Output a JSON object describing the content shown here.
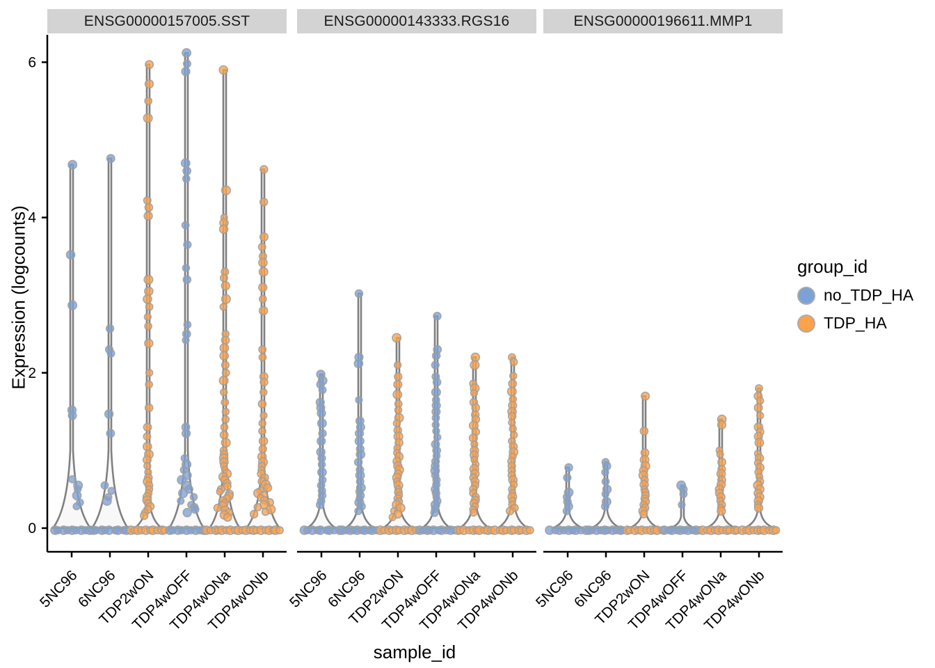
{
  "axes": {
    "y_title": "Expression (logcounts)",
    "x_title": "sample_id",
    "y_ticks": [
      0,
      2,
      4,
      6
    ],
    "x_categories": [
      "5NC96",
      "6NC96",
      "TDP2wON",
      "TDP4wOFF",
      "TDP4wONa",
      "TDP4wONb"
    ]
  },
  "legend": {
    "title": "group_id",
    "entries": [
      {
        "label": "no_TDP_HA",
        "group": "no_TDP_HA"
      },
      {
        "label": "TDP_HA",
        "group": "TDP_HA"
      }
    ]
  },
  "colors": {
    "group_colors": {
      "no_TDP_HA": "#7BA2D6",
      "TDP_HA": "#FBA24B"
    },
    "point_stroke": "#9e9e9e",
    "violin_fill": "#F8F8F8",
    "violin_stroke": "#808080",
    "strip_bg": "#D3D3D3",
    "axis": "#000000"
  },
  "chart_data": {
    "type": "violin",
    "ylabel": "Expression (logcounts)",
    "xlabel": "sample_id",
    "ylim": [
      0,
      6.2
    ],
    "categories": [
      "5NC96",
      "6NC96",
      "TDP2wON",
      "TDP4wOFF",
      "TDP4wONa",
      "TDP4wONb"
    ],
    "sample_groups": {
      "5NC96": "no_TDP_HA",
      "6NC96": "no_TDP_HA",
      "TDP2wON": "TDP_HA",
      "TDP4wOFF": "no_TDP_HA",
      "TDP4wONa": "TDP_HA",
      "TDP4wONb": "TDP_HA"
    },
    "facets": [
      {
        "gene": "ENSG00000157005.SST",
        "violins": [
          {
            "sample": "5NC96",
            "group": "no_TDP_HA",
            "flare_top": 1.0,
            "base_half": 27,
            "zero_count": 9,
            "points": [
              4.68,
              3.52,
              2.87,
              1.52,
              1.45,
              0.63,
              0.55,
              0.5,
              0.42,
              0.33,
              0.28
            ]
          },
          {
            "sample": "6NC96",
            "group": "no_TDP_HA",
            "flare_top": 1.0,
            "base_half": 26,
            "zero_count": 9,
            "points": [
              4.76,
              2.57,
              2.3,
              2.25,
              1.47,
              1.22,
              0.55,
              0.48,
              0.4,
              0.35
            ]
          },
          {
            "sample": "TDP2wON",
            "group": "TDP_HA",
            "flare_top": 0.35,
            "base_half": 20,
            "zero_count": 10,
            "points": [
              5.97,
              5.72,
              5.5,
              5.28,
              4.22,
              4.13,
              4.02,
              3.2,
              3.05,
              2.95,
              2.85,
              2.72,
              2.6,
              2.38,
              2.0,
              1.85,
              1.55,
              1.3,
              1.18,
              1.05,
              0.95,
              0.88,
              0.8,
              0.72,
              0.65,
              0.6,
              0.55,
              0.5,
              0.45,
              0.4,
              0.36,
              0.32,
              0.28,
              0.24,
              0.2,
              0.16
            ]
          },
          {
            "sample": "TDP4wOFF",
            "group": "no_TDP_HA",
            "flare_top": 1.0,
            "base_half": 25,
            "zero_count": 9,
            "points": [
              6.12,
              5.98,
              5.88,
              4.7,
              4.6,
              4.5,
              3.9,
              3.65,
              3.35,
              3.2,
              2.62,
              2.5,
              2.42,
              1.3,
              1.22,
              0.9,
              0.82,
              0.75,
              0.68,
              0.62,
              0.55,
              0.5,
              0.45,
              0.4,
              0.35,
              0.3,
              0.27,
              0.24,
              0.2
            ]
          },
          {
            "sample": "TDP4wONa",
            "group": "TDP_HA",
            "flare_top": 0.8,
            "base_half": 22,
            "zero_count": 10,
            "points": [
              5.9,
              4.35,
              4.0,
              3.93,
              3.85,
              3.3,
              3.22,
              3.12,
              2.95,
              2.85,
              2.5,
              2.42,
              2.32,
              2.22,
              2.1,
              2.0,
              1.9,
              1.75,
              1.62,
              1.5,
              1.4,
              1.3,
              1.2,
              1.1,
              1.0,
              0.95,
              0.9,
              0.85,
              0.8,
              0.75,
              0.7,
              0.66,
              0.62,
              0.58,
              0.54,
              0.5,
              0.47,
              0.44,
              0.41,
              0.38,
              0.35,
              0.32,
              0.29,
              0.26,
              0.23,
              0.2,
              0.17,
              0.14
            ]
          },
          {
            "sample": "TDP4wONb",
            "group": "TDP_HA",
            "flare_top": 0.8,
            "base_half": 24,
            "zero_count": 10,
            "points": [
              4.62,
              4.2,
              3.75,
              3.62,
              3.5,
              3.42,
              3.3,
              3.1,
              2.95,
              2.8,
              2.3,
              2.2,
              1.95,
              1.88,
              1.75,
              1.6,
              1.45,
              1.35,
              1.25,
              1.12,
              1.02,
              0.92,
              0.85,
              0.8,
              0.75,
              0.7,
              0.65,
              0.6,
              0.56,
              0.52,
              0.48,
              0.45,
              0.42,
              0.39,
              0.36,
              0.33,
              0.3,
              0.27,
              0.24,
              0.21,
              0.18
            ]
          }
        ]
      },
      {
        "gene": "ENSG00000143333.RGS16",
        "violins": [
          {
            "sample": "5NC96",
            "group": "no_TDP_HA",
            "flare_top": 0.32,
            "base_half": 21,
            "zero_count": 9,
            "points": [
              1.98,
              1.9,
              1.85,
              1.78,
              1.62,
              1.55,
              1.48,
              1.35,
              1.22,
              1.12,
              0.98,
              0.9,
              0.82,
              0.72,
              0.62,
              0.55,
              0.48,
              0.42,
              0.35,
              0.3
            ]
          },
          {
            "sample": "6NC96",
            "group": "no_TDP_HA",
            "flare_top": 0.32,
            "base_half": 21,
            "zero_count": 10,
            "points": [
              3.02,
              2.2,
              2.12,
              1.65,
              1.38,
              1.3,
              1.22,
              1.12,
              1.02,
              0.95,
              0.85,
              0.75,
              0.68,
              0.6,
              0.52,
              0.47,
              0.42,
              0.38,
              0.33,
              0.28,
              0.22
            ]
          },
          {
            "sample": "TDP2wON",
            "group": "TDP_HA",
            "flare_top": 0.32,
            "base_half": 22,
            "zero_count": 10,
            "points": [
              2.45,
              2.1,
              1.95,
              1.85,
              1.72,
              1.6,
              1.52,
              1.42,
              1.35,
              1.26,
              1.18,
              1.1,
              1.03,
              0.97,
              0.92,
              0.86,
              0.8,
              0.75,
              0.7,
              0.65,
              0.6,
              0.55,
              0.5,
              0.46,
              0.42,
              0.38,
              0.34,
              0.3,
              0.26,
              0.22,
              0.18,
              0.14
            ]
          },
          {
            "sample": "TDP4wOFF",
            "group": "no_TDP_HA",
            "flare_top": 0.32,
            "base_half": 21,
            "zero_count": 10,
            "points": [
              2.73,
              2.3,
              2.22,
              2.1,
              1.95,
              1.88,
              1.75,
              1.65,
              1.58,
              1.5,
              1.42,
              1.33,
              1.25,
              1.17,
              1.08,
              1.0,
              0.93,
              0.86,
              0.8,
              0.74,
              0.68,
              0.62,
              0.56,
              0.5,
              0.45,
              0.4,
              0.35,
              0.3,
              0.25,
              0.2
            ]
          },
          {
            "sample": "TDP4wONa",
            "group": "TDP_HA",
            "flare_top": 0.32,
            "base_half": 22,
            "zero_count": 10,
            "points": [
              2.2,
              2.1,
              1.86,
              1.8,
              1.74,
              1.62,
              1.55,
              1.46,
              1.4,
              1.32,
              1.24,
              1.16,
              1.08,
              1.0,
              0.94,
              0.88,
              0.82,
              0.76,
              0.7,
              0.65,
              0.6,
              0.55,
              0.5,
              0.45,
              0.4,
              0.36,
              0.32,
              0.28,
              0.24,
              0.2
            ]
          },
          {
            "sample": "TDP4wONb",
            "group": "TDP_HA",
            "flare_top": 0.32,
            "base_half": 22,
            "zero_count": 10,
            "points": [
              2.2,
              2.14,
              1.96,
              1.86,
              1.76,
              1.66,
              1.58,
              1.5,
              1.44,
              1.36,
              1.28,
              1.2,
              1.12,
              1.05,
              0.98,
              0.92,
              0.86,
              0.8,
              0.74,
              0.68,
              0.62,
              0.56,
              0.5,
              0.45,
              0.4,
              0.35,
              0.3,
              0.26,
              0.22
            ]
          }
        ]
      },
      {
        "gene": "ENSG00000196611.MMP1",
        "violins": [
          {
            "sample": "5NC96",
            "group": "no_TDP_HA",
            "flare_top": 0.22,
            "base_half": 22,
            "zero_count": 9,
            "points": [
              0.78,
              0.65,
              0.46,
              0.4,
              0.34,
              0.28,
              0.22
            ]
          },
          {
            "sample": "6NC96",
            "group": "no_TDP_HA",
            "flare_top": 0.22,
            "base_half": 22,
            "zero_count": 10,
            "points": [
              0.85,
              0.8,
              0.72,
              0.6,
              0.5,
              0.44,
              0.34,
              0.28
            ]
          },
          {
            "sample": "TDP2wON",
            "group": "TDP_HA",
            "flare_top": 0.22,
            "base_half": 22,
            "zero_count": 10,
            "points": [
              1.7,
              1.25,
              0.97,
              0.88,
              0.8,
              0.74,
              0.68,
              0.62,
              0.56,
              0.5,
              0.46,
              0.42,
              0.38,
              0.34,
              0.3,
              0.26,
              0.22,
              0.18
            ]
          },
          {
            "sample": "TDP4wOFF",
            "group": "no_TDP_HA",
            "flare_top": 0.15,
            "base_half": 18,
            "zero_count": 10,
            "points": [
              0.55,
              0.5,
              0.44,
              0.3
            ]
          },
          {
            "sample": "TDP4wONa",
            "group": "TDP_HA",
            "flare_top": 0.22,
            "base_half": 22,
            "zero_count": 10,
            "points": [
              1.4,
              1.33,
              1.0,
              0.95,
              0.85,
              0.76,
              0.7,
              0.62,
              0.56,
              0.5,
              0.45,
              0.4,
              0.35,
              0.3,
              0.26,
              0.22
            ]
          },
          {
            "sample": "TDP4wONb",
            "group": "TDP_HA",
            "flare_top": 0.22,
            "base_half": 22,
            "zero_count": 10,
            "points": [
              1.8,
              1.7,
              1.64,
              1.55,
              1.45,
              1.3,
              1.24,
              1.18,
              1.1,
              0.96,
              0.9,
              0.84,
              0.78,
              0.72,
              0.66,
              0.6,
              0.55,
              0.5,
              0.45,
              0.4,
              0.35,
              0.3,
              0.26
            ]
          }
        ]
      }
    ]
  }
}
